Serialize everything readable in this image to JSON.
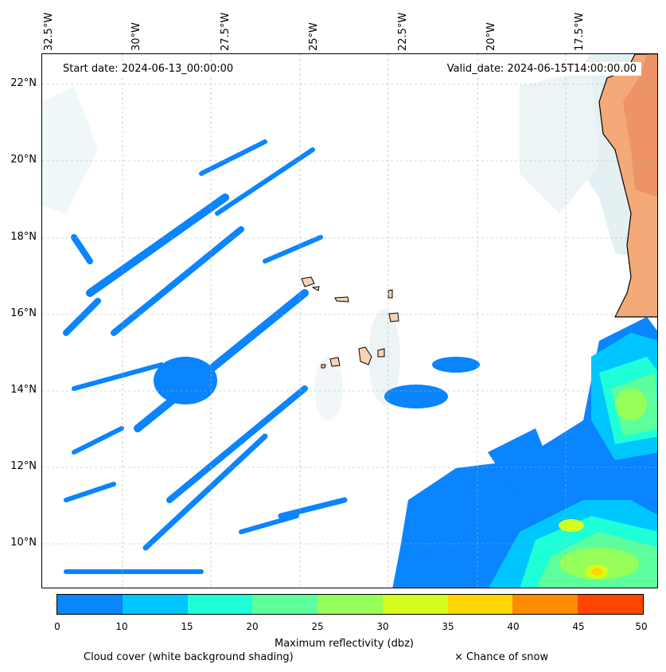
{
  "map": {
    "start_date_text": "Start date: 2024-06-13_00:00:00",
    "valid_date_text": "Valid_date: 2024-06-15T14:00:00.00",
    "longitude_labels": [
      "32.5°W",
      "30°W",
      "27.5°W",
      "25°W",
      "22.5°W",
      "20°W",
      "17.5°W"
    ],
    "latitude_labels": [
      "22°N",
      "20°N",
      "18°N",
      "16°N",
      "14°N",
      "12°N",
      "10°N"
    ],
    "extent": {
      "lon_min": -32.7,
      "lon_max": -15.7,
      "lat_min": 8.8,
      "lat_max": 22.8
    },
    "layers": [
      "Cloud cover (white background shading)",
      "Maximum reflectivity (dbz)",
      "Chance of snow"
    ],
    "land_color": "#f6d2b2",
    "cloud_color": "#cfe4ea"
  },
  "colorbar": {
    "label": "Maximum reflectivity (dbz)",
    "ticks": [
      "0",
      "5",
      "10",
      "15",
      "20",
      "25",
      "30",
      "35",
      "40",
      "45",
      "50"
    ],
    "colors": [
      "#0a84ff",
      "#00c6ff",
      "#1effd8",
      "#5cff9c",
      "#96ff5a",
      "#d4ff1e",
      "#ffd700",
      "#ff8c00",
      "#ff4500"
    ],
    "bins": [
      "0-10",
      "10-15",
      "15-20",
      "20-25",
      "25-30",
      "30-35",
      "35-40",
      "40-45",
      "45-50"
    ]
  },
  "captions": {
    "cloud_cover": "Cloud cover (white background shading)",
    "snow": "× Chance of snow"
  }
}
